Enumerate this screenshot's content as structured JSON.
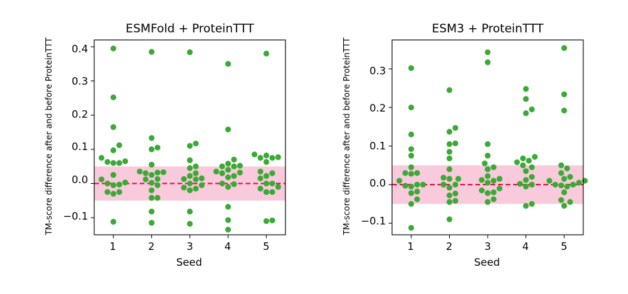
{
  "chart_data": [
    {
      "type": "scatter",
      "title": "ESMFold + ProteinTTT",
      "xlabel": "Seed",
      "ylabel": "TM-score difference after and before ProteinTTT",
      "categories": [
        "1",
        "2",
        "3",
        "4",
        "5"
      ],
      "xlim": [
        0.5,
        5.5
      ],
      "ylim": [
        -0.15,
        0.42
      ],
      "yticks": [
        -0.1,
        0.0,
        0.1,
        0.2,
        0.3,
        0.4
      ],
      "ytick_labels": [
        "−0.1",
        "0.0",
        "0.1",
        "0.2",
        "0.3",
        "0.4"
      ],
      "band": [
        -0.05,
        0.05
      ],
      "reference_line": 0.0,
      "colors": {
        "points": "#3aaa35",
        "band": "#f9cadb",
        "line": "#e0114c"
      },
      "series": [
        {
          "name": "1",
          "values": [
            0.395,
            0.252,
            0.165,
            0.112,
            0.097,
            0.075,
            0.063,
            0.065,
            0.06,
            0.06,
            0.025,
            0.012,
            0.003,
            -0.003,
            0.0,
            -0.005,
            -0.025,
            -0.03,
            -0.025,
            -0.112
          ]
        },
        {
          "name": "2",
          "values": [
            0.385,
            0.133,
            0.105,
            0.1,
            0.055,
            0.035,
            0.032,
            0.033,
            0.03,
            0.025,
            0.012,
            0.013,
            0.002,
            -0.005,
            -0.02,
            -0.042,
            -0.042,
            -0.082,
            -0.115
          ]
        },
        {
          "name": "3",
          "values": [
            0.384,
            0.117,
            0.11,
            0.068,
            0.05,
            0.045,
            0.03,
            0.022,
            0.015,
            0.012,
            0.013,
            0.0,
            -0.005,
            -0.02,
            -0.015,
            -0.012,
            -0.082,
            -0.118
          ]
        },
        {
          "name": "4",
          "values": [
            0.35,
            0.158,
            0.07,
            0.058,
            0.052,
            0.05,
            0.05,
            0.04,
            0.035,
            0.032,
            0.03,
            0.022,
            0.018,
            0.0,
            -0.002,
            -0.01,
            -0.068,
            -0.107,
            -0.135
          ]
        },
        {
          "name": "5",
          "values": [
            0.38,
            0.085,
            0.082,
            0.077,
            0.075,
            0.075,
            0.063,
            0.035,
            0.03,
            0.022,
            0.015,
            0.0,
            0.0,
            -0.01,
            -0.015,
            -0.025,
            -0.025,
            -0.108,
            -0.11
          ]
        }
      ]
    },
    {
      "type": "scatter",
      "title": "ESM3 + ProteinTTT",
      "xlabel": "Seed",
      "ylabel": "TM-score difference after and before ProteinTTT",
      "categories": [
        "1",
        "2",
        "3",
        "4",
        "5"
      ],
      "xlim": [
        0.5,
        5.5
      ],
      "ylim": [
        -0.13,
        0.375
      ],
      "yticks": [
        -0.1,
        0.0,
        0.1,
        0.2,
        0.3
      ],
      "ytick_labels": [
        "−0.1",
        "0.0",
        "0.1",
        "0.2",
        "0.3"
      ],
      "band": [
        -0.05,
        0.05
      ],
      "reference_line": 0.0,
      "colors": {
        "points": "#3aaa35",
        "band": "#f9cadb",
        "line": "#e0114c"
      },
      "series": [
        {
          "name": "1",
          "values": [
            0.302,
            0.2,
            0.13,
            0.092,
            0.075,
            0.045,
            0.03,
            0.03,
            0.028,
            0.01,
            0.0,
            0.0,
            -0.005,
            -0.003,
            -0.018,
            -0.022,
            -0.038,
            -0.05,
            -0.112
          ]
        },
        {
          "name": "2",
          "values": [
            0.245,
            0.147,
            0.137,
            0.107,
            0.105,
            0.085,
            0.068,
            0.04,
            0.018,
            0.015,
            0.015,
            0.0,
            0.0,
            -0.008,
            -0.023,
            -0.028,
            -0.042,
            -0.045,
            -0.09
          ]
        },
        {
          "name": "3",
          "values": [
            0.343,
            0.317,
            0.105,
            0.075,
            0.055,
            0.045,
            0.04,
            0.022,
            0.015,
            0.012,
            0.01,
            0.005,
            -0.01,
            -0.015,
            -0.022,
            -0.02,
            -0.038,
            -0.045
          ]
        },
        {
          "name": "4",
          "values": [
            0.248,
            0.222,
            0.195,
            0.185,
            0.072,
            0.068,
            0.062,
            0.058,
            0.05,
            0.045,
            0.035,
            0.02,
            0.012,
            0.002,
            0.0,
            -0.005,
            -0.05,
            -0.055
          ]
        },
        {
          "name": "5",
          "values": [
            0.354,
            0.234,
            0.192,
            0.05,
            0.042,
            0.03,
            0.02,
            0.015,
            0.01,
            0.01,
            0.005,
            0.0,
            0.0,
            -0.002,
            -0.005,
            -0.02,
            -0.04,
            -0.045,
            -0.055
          ]
        }
      ]
    }
  ]
}
